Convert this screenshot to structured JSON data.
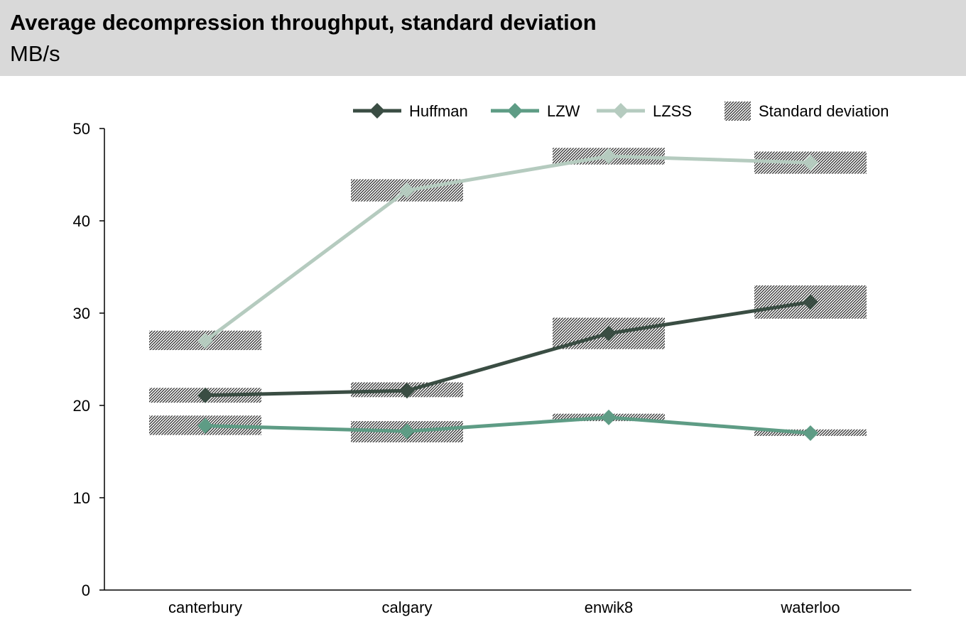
{
  "header": {
    "title": "Average decompression throughput, standard deviation",
    "subtitle": "MB/s"
  },
  "chart_data": {
    "type": "line",
    "title": "Average decompression throughput, standard deviation",
    "subtitle": "MB/s",
    "xlabel": "",
    "ylabel": "",
    "ylim": [
      0,
      50
    ],
    "yticks": [
      0,
      10,
      20,
      30,
      40,
      50
    ],
    "categories": [
      "canterbury",
      "calgary",
      "enwik8",
      "waterloo"
    ],
    "grid": false,
    "legend_position": "top-right",
    "series": [
      {
        "name": "Huffman",
        "color": "#3a4d43",
        "marker": "diamond",
        "values": [
          21.1,
          21.6,
          27.8,
          31.2
        ],
        "std_range": [
          [
            20.3,
            21.9
          ],
          [
            20.9,
            22.5
          ],
          [
            26.1,
            29.5
          ],
          [
            29.4,
            33.0
          ]
        ]
      },
      {
        "name": "LZW",
        "color": "#5e9c85",
        "marker": "diamond",
        "values": [
          17.8,
          17.2,
          18.7,
          17.0
        ],
        "std_range": [
          [
            16.8,
            18.9
          ],
          [
            16.0,
            18.3
          ],
          [
            18.3,
            19.1
          ],
          [
            16.7,
            17.4
          ]
        ]
      },
      {
        "name": "LZSS",
        "color": "#b5cbbf",
        "marker": "diamond",
        "values": [
          27.0,
          43.3,
          47.0,
          46.3
        ],
        "std_range": [
          [
            26.0,
            28.1
          ],
          [
            42.1,
            44.5
          ],
          [
            46.1,
            47.9
          ],
          [
            45.1,
            47.5
          ]
        ]
      }
    ],
    "std_legend_label": "Standard deviation"
  }
}
